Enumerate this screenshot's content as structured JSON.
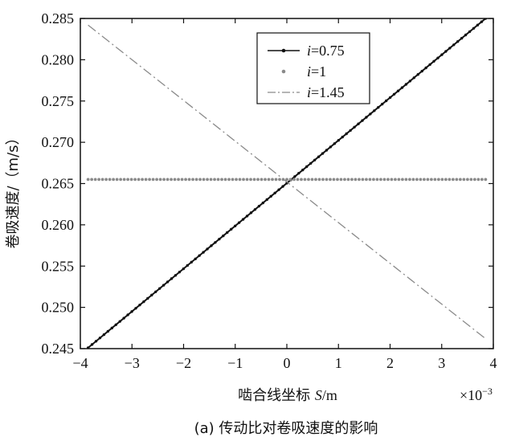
{
  "chart_data": {
    "type": "line",
    "caption": "(a) 传动比对卷吸速度的影响",
    "xlabel_prefix": "啮合线坐标 ",
    "xlabel_var": "S",
    "xlabel_unit": "/m",
    "x_multiplier": "×10",
    "x_multiplier_exp": "−3",
    "ylabel": "卷吸速度/（m/s）",
    "xlim": [
      -4,
      4
    ],
    "ylim": [
      0.245,
      0.285
    ],
    "xticks": [
      -4,
      -3,
      -2,
      -1,
      0,
      1,
      2,
      3,
      4
    ],
    "xtick_labels": [
      "−4",
      "−3",
      "−2",
      "−1",
      "0",
      "1",
      "2",
      "3",
      "4"
    ],
    "yticks": [
      0.245,
      0.25,
      0.255,
      0.26,
      0.265,
      0.27,
      0.275,
      0.28,
      0.285
    ],
    "ytick_labels": [
      "0.245",
      "0.250",
      "0.255",
      "0.260",
      "0.265",
      "0.270",
      "0.275",
      "0.280",
      "0.285"
    ],
    "legend_position": "top-right",
    "series": [
      {
        "name_var": "i",
        "name_value": "=0.75",
        "style": "solid-dots",
        "color": "#111111",
        "x": [
          -3.85,
          3.85
        ],
        "y": [
          0.2451,
          0.285
        ]
      },
      {
        "name_var": "i",
        "name_value": "=1",
        "style": "dotted",
        "color": "#8a8a8a",
        "x": [
          -3.85,
          3.85
        ],
        "y": [
          0.2655,
          0.2655
        ]
      },
      {
        "name_var": "i",
        "name_value": "=1.45",
        "style": "dash-dot",
        "color": "#8a8a8a",
        "x": [
          -3.85,
          3.85
        ],
        "y": [
          0.2842,
          0.2462
        ]
      }
    ]
  }
}
